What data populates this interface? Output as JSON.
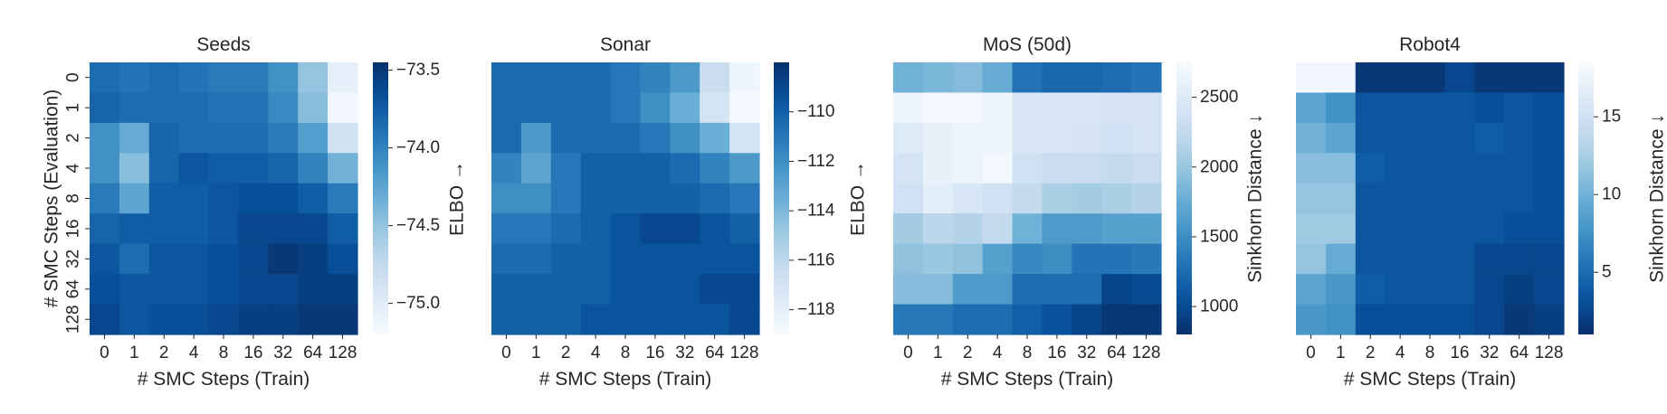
{
  "chart_data": [
    {
      "type": "heatmap",
      "title": "Seeds",
      "xlabel": "# SMC Steps (Train)",
      "ylabel": "# SMC Steps (Evaluation)",
      "x_ticks": [
        "0",
        "1",
        "2",
        "4",
        "8",
        "16",
        "32",
        "64",
        "128"
      ],
      "y_ticks": [
        "0",
        "1",
        "2",
        "4",
        "8",
        "16",
        "32",
        "64",
        "128"
      ],
      "colorbar": {
        "label": "ELBO →",
        "ticks": [
          "−73.5",
          "−74.0",
          "−74.5",
          "−75.0"
        ],
        "tick_values": [
          -73.5,
          -74.0,
          -74.5,
          -75.0
        ],
        "range": [
          -75.2,
          -73.45
        ],
        "high_is_dark": true
      },
      "values": [
        [
          -73.85,
          -73.9,
          -73.85,
          -73.9,
          -73.95,
          -73.95,
          -74.1,
          -74.5,
          -75.05
        ],
        [
          -73.8,
          -73.85,
          -73.85,
          -73.85,
          -73.9,
          -73.9,
          -74.05,
          -74.45,
          -75.15
        ],
        [
          -74.1,
          -74.3,
          -73.8,
          -73.85,
          -73.85,
          -73.85,
          -73.95,
          -74.2,
          -74.85
        ],
        [
          -74.1,
          -74.45,
          -73.8,
          -73.7,
          -73.75,
          -73.75,
          -73.8,
          -74.0,
          -74.35
        ],
        [
          -73.95,
          -74.25,
          -73.75,
          -73.75,
          -73.7,
          -73.65,
          -73.65,
          -73.75,
          -73.95
        ],
        [
          -73.8,
          -73.75,
          -73.75,
          -73.75,
          -73.7,
          -73.6,
          -73.6,
          -73.6,
          -73.75
        ],
        [
          -73.7,
          -73.85,
          -73.7,
          -73.7,
          -73.65,
          -73.6,
          -73.5,
          -73.55,
          -73.65
        ],
        [
          -73.65,
          -73.7,
          -73.7,
          -73.7,
          -73.65,
          -73.6,
          -73.6,
          -73.55,
          -73.55
        ],
        [
          -73.6,
          -73.7,
          -73.65,
          -73.65,
          -73.6,
          -73.55,
          -73.55,
          -73.5,
          -73.5
        ]
      ]
    },
    {
      "type": "heatmap",
      "title": "Sonar",
      "xlabel": "# SMC Steps (Train)",
      "ylabel": "",
      "x_ticks": [
        "0",
        "1",
        "2",
        "4",
        "8",
        "16",
        "32",
        "64",
        "128"
      ],
      "y_ticks": [],
      "colorbar": {
        "label": "ELBO →",
        "ticks": [
          "−110",
          "−112",
          "−114",
          "−116",
          "−118"
        ],
        "tick_values": [
          -110,
          -112,
          -114,
          -116,
          -118
        ],
        "range": [
          -119,
          -108
        ],
        "high_is_dark": true
      },
      "values": [
        [
          -110.5,
          -110.5,
          -110.5,
          -110.5,
          -111,
          -111.5,
          -112.5,
          -116.5,
          -118.5
        ],
        [
          -110.5,
          -110.5,
          -110.5,
          -110.5,
          -111,
          -112,
          -113.5,
          -117,
          -118.8
        ],
        [
          -110.5,
          -112.5,
          -110.5,
          -110.5,
          -110.5,
          -111,
          -112,
          -113.5,
          -117
        ],
        [
          -111.5,
          -113,
          -111,
          -110,
          -110,
          -110,
          -110.5,
          -111.5,
          -112.5
        ],
        [
          -112,
          -112,
          -111,
          -110,
          -110,
          -110,
          -110,
          -110.5,
          -111
        ],
        [
          -111,
          -111,
          -110.5,
          -110,
          -109.5,
          -109,
          -109,
          -109.5,
          -110
        ],
        [
          -110.5,
          -110.5,
          -110,
          -110,
          -109.5,
          -109.5,
          -109.5,
          -109.5,
          -109.5
        ],
        [
          -110,
          -110,
          -110,
          -110,
          -109.5,
          -109.5,
          -109.5,
          -109,
          -109
        ],
        [
          -110,
          -110,
          -110,
          -109.5,
          -109.5,
          -109.5,
          -109.5,
          -109.5,
          -109
        ]
      ]
    },
    {
      "type": "heatmap",
      "title": "MoS (50d)",
      "xlabel": "# SMC Steps (Train)",
      "ylabel": "",
      "x_ticks": [
        "0",
        "1",
        "2",
        "4",
        "8",
        "16",
        "32",
        "64",
        "128"
      ],
      "y_ticks": [],
      "colorbar": {
        "label": "Sinkhorn Distance ↓",
        "ticks": [
          "2500",
          "2000",
          "1500",
          "1000"
        ],
        "tick_values": [
          2500,
          2000,
          1500,
          1000
        ],
        "range": [
          800,
          2750
        ],
        "high_is_dark": false
      },
      "values": [
        [
          1800,
          1850,
          1900,
          1750,
          1300,
          1200,
          1200,
          1250,
          1300
        ],
        [
          2650,
          2700,
          2700,
          2650,
          2450,
          2450,
          2450,
          2400,
          2400
        ],
        [
          2500,
          2600,
          2650,
          2650,
          2450,
          2450,
          2400,
          2350,
          2400
        ],
        [
          2400,
          2600,
          2650,
          2700,
          2350,
          2300,
          2300,
          2250,
          2300
        ],
        [
          2350,
          2550,
          2450,
          2350,
          2250,
          2100,
          2050,
          2100,
          2150
        ],
        [
          2050,
          2200,
          2150,
          2250,
          1800,
          1600,
          1600,
          1650,
          1650
        ],
        [
          1950,
          2000,
          1950,
          1650,
          1450,
          1500,
          1300,
          1300,
          1350
        ],
        [
          1900,
          1900,
          1600,
          1600,
          1250,
          1250,
          1250,
          950,
          1000
        ],
        [
          1350,
          1350,
          1250,
          1250,
          1150,
          1050,
          950,
          850,
          850
        ]
      ]
    },
    {
      "type": "heatmap",
      "title": "Robot4",
      "xlabel": "# SMC Steps (Train)",
      "ylabel": "",
      "x_ticks": [
        "0",
        "1",
        "2",
        "4",
        "8",
        "16",
        "32",
        "64",
        "128"
      ],
      "y_ticks": [],
      "colorbar": {
        "label": "Sinkhorn Distance ↓",
        "ticks": [
          "15",
          "10",
          "5"
        ],
        "tick_values": [
          15,
          10,
          5
        ],
        "range": [
          1,
          18.5
        ],
        "high_is_dark": false
      },
      "values": [
        [
          18,
          18,
          1.5,
          1.5,
          1.5,
          2.5,
          1.5,
          1.5,
          1.5
        ],
        [
          9,
          7.5,
          3.5,
          3.5,
          3.5,
          3.5,
          3,
          3.5,
          3
        ],
        [
          10,
          9,
          3.5,
          3.5,
          3.5,
          3.5,
          4,
          3.5,
          3
        ],
        [
          11,
          11,
          4,
          3.5,
          3.5,
          3.5,
          3.5,
          3.5,
          3
        ],
        [
          11.5,
          11.5,
          3.5,
          3.5,
          3.5,
          3.5,
          3.5,
          3.5,
          3
        ],
        [
          12,
          12,
          3.5,
          3.5,
          3.5,
          3.5,
          3.5,
          3,
          3
        ],
        [
          11.5,
          9.5,
          3.5,
          3.5,
          3.5,
          3.5,
          2.5,
          2.5,
          2.5
        ],
        [
          9,
          8,
          4,
          3.5,
          3.5,
          3.5,
          2.5,
          2,
          2.5
        ],
        [
          8,
          7.5,
          3,
          3,
          3,
          3,
          2.5,
          1.5,
          2
        ]
      ]
    }
  ]
}
